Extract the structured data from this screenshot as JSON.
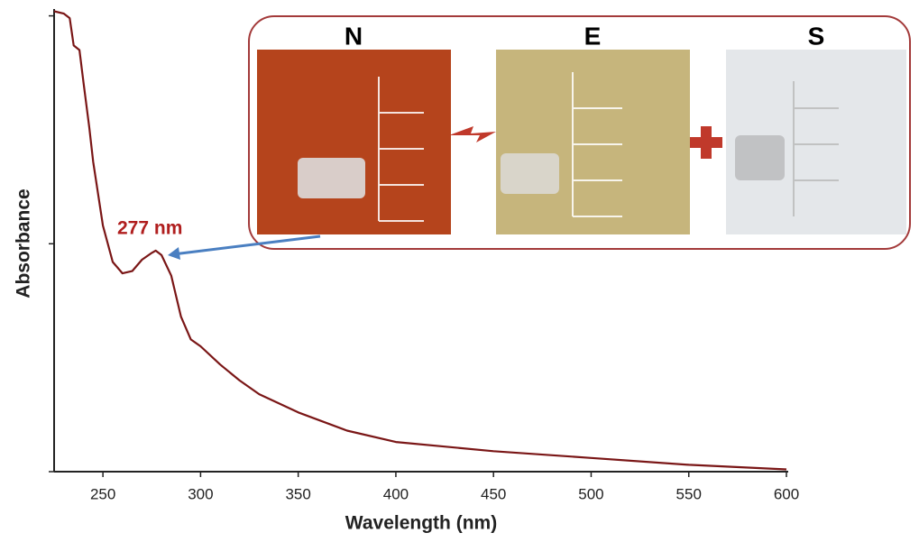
{
  "chart_data": {
    "type": "line",
    "x": [
      225,
      230,
      233,
      235,
      238,
      240,
      243,
      245,
      250,
      255,
      260,
      265,
      270,
      275,
      277,
      280,
      285,
      290,
      295,
      300,
      310,
      320,
      330,
      350,
      375,
      400,
      450,
      500,
      550,
      600
    ],
    "values": [
      2.02,
      2.01,
      1.99,
      1.87,
      1.85,
      1.71,
      1.51,
      1.36,
      1.08,
      0.92,
      0.87,
      0.88,
      0.93,
      0.96,
      0.97,
      0.95,
      0.86,
      0.68,
      0.58,
      0.55,
      0.47,
      0.4,
      0.34,
      0.26,
      0.18,
      0.13,
      0.09,
      0.06,
      0.03,
      0.01
    ],
    "color": "#7a1616",
    "xlabel": "Wavelength (nm)",
    "ylabel": "Absorbance",
    "xlim": [
      225,
      600
    ],
    "ylim": [
      0,
      2.03
    ],
    "xticks": [
      250,
      300,
      350,
      400,
      450,
      500,
      550,
      600
    ],
    "yticks": [
      0,
      1,
      2
    ],
    "annotation": "277 nm",
    "inset_labels": [
      "N",
      "E",
      "S"
    ]
  }
}
